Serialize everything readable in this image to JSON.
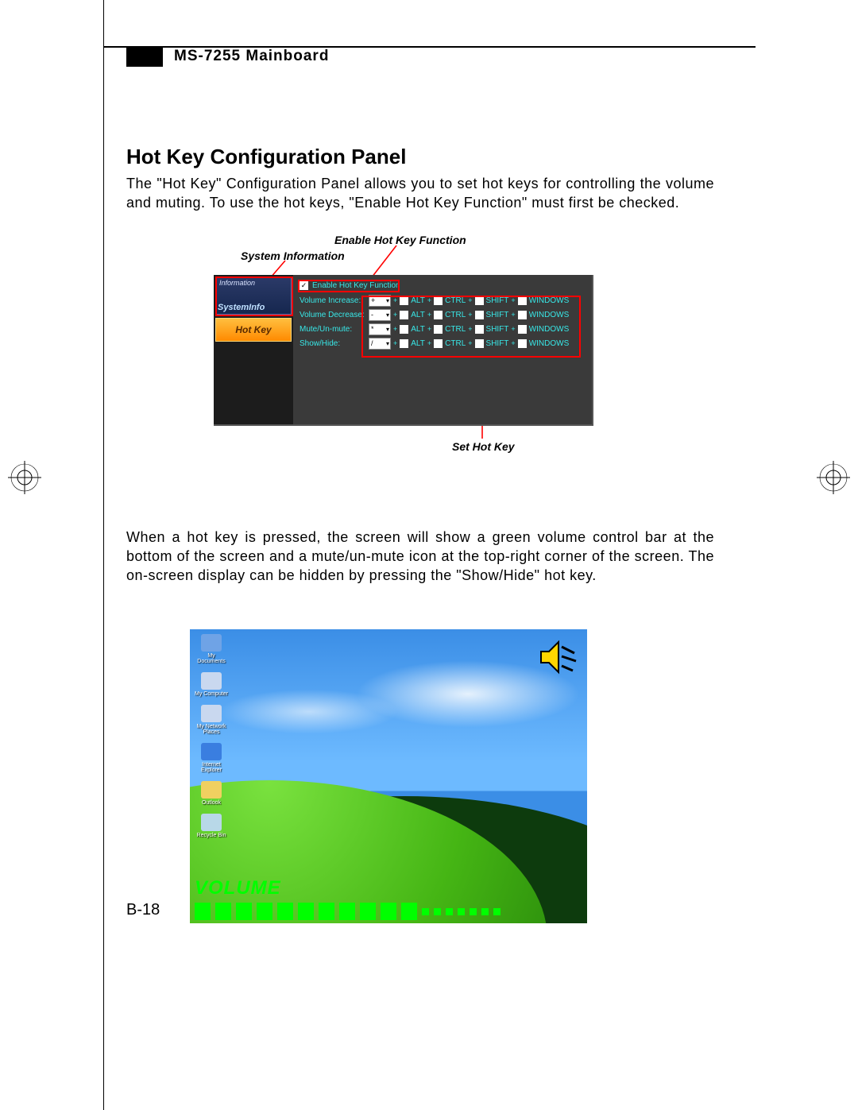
{
  "header": {
    "title": "MS-7255 Mainboard"
  },
  "section": {
    "title": "Hot Key Configuration Panel",
    "paragraph1": "The \"Hot Key\" Configuration Panel allows you to set hot keys for controlling the volume and muting. To use the hot keys, \"Enable Hot Key Function\" must first be checked.",
    "paragraph2": "When a hot key is pressed, the screen will show a green volume control bar at the bottom of the screen and a mute/un-mute icon at the top-right corner of the screen. The on-screen display can be hidden by pressing the \"Show/Hide\" hot key."
  },
  "callouts": {
    "enable_label": "Enable Hot Key Function",
    "sysinfo_label": "System Information",
    "sethotkey_label": "Set Hot Key"
  },
  "panel": {
    "left": {
      "information_title": "Information",
      "systeminfo_label": "SystemInfo",
      "hotkey_label": "Hot Key"
    },
    "enable_checkbox_label": "Enable Hot Key Function",
    "modifiers": {
      "alt": "ALT",
      "ctrl": "CTRL",
      "shift": "SHIFT",
      "windows": "WINDOWS"
    },
    "rows": [
      {
        "label": "Volume Increase:",
        "key": "+"
      },
      {
        "label": "Volume Decrease:",
        "key": "-"
      },
      {
        "label": "Mute/Un-mute:",
        "key": "*"
      },
      {
        "label": "Show/Hide:",
        "key": "/"
      }
    ]
  },
  "desktop": {
    "icons": [
      {
        "label": "My Documents",
        "color": "#6fa3e6"
      },
      {
        "label": "My Computer",
        "color": "#c9d8ef"
      },
      {
        "label": "My Network Places",
        "color": "#c9d8ef"
      },
      {
        "label": "Internet Explorer",
        "color": "#3a7ee0"
      },
      {
        "label": "Outlook",
        "color": "#f0d060"
      },
      {
        "label": "Recycle Bin",
        "color": "#b8d8e8"
      }
    ],
    "volume_label": "VOLUME",
    "volume_filled": 11,
    "volume_empty": 7,
    "mute_icon_color": "#ffd600"
  },
  "page_number": "B-18",
  "colors": {
    "callout_red": "#ff0000",
    "cyan": "#38e8e8",
    "green": "#00ff00"
  }
}
